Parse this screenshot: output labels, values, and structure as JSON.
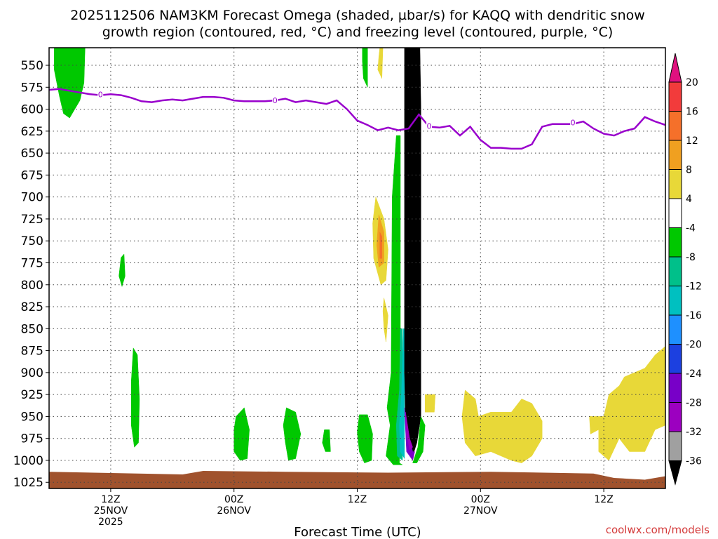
{
  "chart_data": {
    "type": "heatmap",
    "title_line1": "2025112506 NAM3KM Forecast Omega (shaded, µbar/s) for KAQQ with dendritic snow",
    "title_line2": "growth region (contoured, red, °C) and freezing level (contoured, purple, °C)",
    "xlabel": "Forecast Time (UTC)",
    "credit": "coolwx.com/models",
    "y_ticks": [
      "550",
      "575",
      "600",
      "625",
      "650",
      "675",
      "700",
      "725",
      "750",
      "775",
      "800",
      "825",
      "850",
      "875",
      "900",
      "925",
      "950",
      "975",
      "1000",
      "1025"
    ],
    "y_values": [
      550,
      575,
      600,
      625,
      650,
      675,
      700,
      725,
      750,
      775,
      800,
      825,
      850,
      875,
      900,
      925,
      950,
      975,
      1000,
      1025
    ],
    "ylim": [
      530,
      1032
    ],
    "x_range_hours": [
      -3,
      57
    ],
    "x_ticks": [
      {
        "hour": 3,
        "line1": "12Z",
        "line2": "25NOV",
        "line3": "2025"
      },
      {
        "hour": 15,
        "line1": "00Z",
        "line2": "26NOV",
        "line3": ""
      },
      {
        "hour": 27,
        "line1": "12Z",
        "line2": "",
        "line3": ""
      },
      {
        "hour": 39,
        "line1": "00Z",
        "line2": "27NOV",
        "line3": ""
      },
      {
        "hour": 51,
        "line1": "12Z",
        "line2": "",
        "line3": ""
      }
    ],
    "colorbar": {
      "labels": [
        "20",
        "16",
        "12",
        "8",
        "4",
        "-4",
        "-8",
        "-12",
        "-16",
        "-20",
        "-24",
        "-28",
        "-32",
        "-36"
      ],
      "colors": [
        "#e0117f",
        "#f23b3b",
        "#f5702a",
        "#f0a020",
        "#e8d838",
        "#ffffff",
        "#00c800",
        "#00c08a",
        "#00c0c0",
        "#1e90ff",
        "#1c40e0",
        "#7800c8",
        "#9c00c0",
        "#a0a0a0",
        "#000000"
      ]
    },
    "freezing_level": {
      "label": "0",
      "color": "#9900cc",
      "points": [
        [
          -3,
          578
        ],
        [
          -2,
          577
        ],
        [
          -1,
          579
        ],
        [
          0,
          581
        ],
        [
          1,
          583
        ],
        [
          2,
          584
        ],
        [
          3,
          583
        ],
        [
          4,
          584
        ],
        [
          5,
          587
        ],
        [
          6,
          591
        ],
        [
          7,
          592
        ],
        [
          8,
          590
        ],
        [
          9,
          589
        ],
        [
          10,
          590
        ],
        [
          11,
          588
        ],
        [
          12,
          586
        ],
        [
          13,
          586
        ],
        [
          14,
          587
        ],
        [
          15,
          590
        ],
        [
          16,
          591
        ],
        [
          17,
          591
        ],
        [
          18,
          591
        ],
        [
          19,
          590
        ],
        [
          20,
          588
        ],
        [
          21,
          592
        ],
        [
          22,
          590
        ],
        [
          23,
          592
        ],
        [
          24,
          594
        ],
        [
          25,
          590
        ],
        [
          26,
          600
        ],
        [
          27,
          613
        ],
        [
          28,
          618
        ],
        [
          29,
          624
        ],
        [
          30,
          621
        ],
        [
          31,
          624
        ],
        [
          32,
          622
        ],
        [
          33,
          606
        ],
        [
          34,
          620
        ],
        [
          35,
          621
        ],
        [
          36,
          619
        ],
        [
          37,
          630
        ],
        [
          38,
          620
        ],
        [
          39,
          635
        ],
        [
          40,
          644
        ],
        [
          41,
          644
        ],
        [
          42,
          645
        ],
        [
          43,
          645
        ],
        [
          44,
          640
        ],
        [
          45,
          620
        ],
        [
          46,
          617
        ],
        [
          47,
          617
        ],
        [
          48,
          617
        ],
        [
          49,
          614
        ],
        [
          50,
          622
        ],
        [
          51,
          628
        ],
        [
          52,
          630
        ],
        [
          53,
          625
        ],
        [
          54,
          622
        ],
        [
          55,
          609
        ],
        [
          56,
          614
        ],
        [
          57,
          618
        ]
      ],
      "label_points": [
        [
          2,
          583
        ],
        [
          19,
          590
        ],
        [
          34,
          619
        ],
        [
          48,
          615
        ]
      ]
    },
    "omega_regions": [
      {
        "color": "#00c800",
        "points": [
          [
            -2.5,
            530
          ],
          [
            0.5,
            530
          ],
          [
            0.4,
            570
          ],
          [
            0,
            590
          ],
          [
            -1,
            610
          ],
          [
            -1.6,
            605
          ],
          [
            -2,
            585
          ],
          [
            -2.5,
            555
          ]
        ]
      },
      {
        "color": "#00c800",
        "points": [
          [
            27.5,
            530
          ],
          [
            28,
            530
          ],
          [
            28,
            575
          ],
          [
            27.6,
            565
          ],
          [
            27.5,
            545
          ]
        ]
      },
      {
        "color": "#e8d838",
        "points": [
          [
            29.2,
            530
          ],
          [
            29.5,
            530
          ],
          [
            29.4,
            565
          ],
          [
            29,
            555
          ],
          [
            29.1,
            540
          ]
        ]
      },
      {
        "color": "#00c800",
        "points": [
          [
            4,
            769
          ],
          [
            4.3,
            765
          ],
          [
            4.4,
            790
          ],
          [
            4.1,
            802
          ],
          [
            3.8,
            790
          ]
        ]
      },
      {
        "color": "#00c800",
        "points": [
          [
            5.2,
            872
          ],
          [
            5.6,
            880
          ],
          [
            5.8,
            930
          ],
          [
            5.7,
            980
          ],
          [
            5.3,
            985
          ],
          [
            5,
            960
          ],
          [
            5,
            910
          ]
        ]
      },
      {
        "color": "#00c800",
        "points": [
          [
            15.2,
            950
          ],
          [
            16,
            940
          ],
          [
            16.5,
            965
          ],
          [
            16.3,
            998
          ],
          [
            15.6,
            1000
          ],
          [
            15,
            990
          ],
          [
            15,
            965
          ]
        ]
      },
      {
        "color": "#00c800",
        "points": [
          [
            20.1,
            940
          ],
          [
            21,
            945
          ],
          [
            21.5,
            970
          ],
          [
            21,
            998
          ],
          [
            20.3,
            1000
          ],
          [
            20,
            980
          ],
          [
            19.8,
            960
          ]
        ]
      },
      {
        "color": "#00c800",
        "points": [
          [
            23.8,
            965
          ],
          [
            24.3,
            965
          ],
          [
            24.4,
            990
          ],
          [
            23.9,
            990
          ],
          [
            23.6,
            980
          ]
        ]
      },
      {
        "color": "#00c800",
        "points": [
          [
            27.2,
            948
          ],
          [
            28,
            948
          ],
          [
            28.5,
            970
          ],
          [
            28.4,
            1000
          ],
          [
            27.7,
            1003
          ],
          [
            27.2,
            990
          ],
          [
            27,
            968
          ]
        ]
      },
      {
        "color": "#e8d838",
        "points": [
          [
            28.8,
            700
          ],
          [
            29.6,
            725
          ],
          [
            30,
            760
          ],
          [
            29.8,
            795
          ],
          [
            29.3,
            800
          ],
          [
            28.6,
            770
          ],
          [
            28.5,
            730
          ]
        ]
      },
      {
        "color": "#f0a020",
        "points": [
          [
            29.1,
            720
          ],
          [
            29.6,
            740
          ],
          [
            29.6,
            775
          ],
          [
            29.1,
            780
          ],
          [
            28.9,
            755
          ]
        ]
      },
      {
        "color": "#f5702a",
        "points": [
          [
            29.2,
            740
          ],
          [
            29.4,
            745
          ],
          [
            29.4,
            770
          ],
          [
            29.2,
            770
          ]
        ]
      },
      {
        "color": "#e8d838",
        "points": [
          [
            29.6,
            815
          ],
          [
            30,
            835
          ],
          [
            29.8,
            865
          ],
          [
            29.6,
            850
          ],
          [
            29.5,
            830
          ]
        ]
      },
      {
        "color": "#e8d838",
        "points": [
          [
            33.6,
            925
          ],
          [
            34.6,
            925
          ],
          [
            34.5,
            945
          ],
          [
            33.6,
            945
          ]
        ]
      },
      {
        "color": "#e8d838",
        "points": [
          [
            37.5,
            920
          ],
          [
            38.5,
            930
          ],
          [
            38.8,
            950
          ],
          [
            40,
            945
          ],
          [
            42,
            945
          ],
          [
            43,
            930
          ],
          [
            44,
            935
          ],
          [
            45,
            955
          ],
          [
            45,
            975
          ],
          [
            44,
            995
          ],
          [
            43,
            1003
          ],
          [
            42,
            1000
          ],
          [
            40,
            990
          ],
          [
            38.5,
            995
          ],
          [
            37.5,
            980
          ],
          [
            37.2,
            950
          ]
        ]
      },
      {
        "color": "#e8d838",
        "points": [
          [
            51.5,
            925
          ],
          [
            52.5,
            915
          ],
          [
            53,
            905
          ],
          [
            55,
            895
          ],
          [
            56,
            880
          ],
          [
            57,
            870
          ],
          [
            57,
            960
          ],
          [
            56,
            965
          ],
          [
            55,
            990
          ],
          [
            53.5,
            990
          ],
          [
            52.5,
            975
          ],
          [
            51.5,
            1000
          ],
          [
            50.5,
            990
          ],
          [
            50.5,
            965
          ],
          [
            49.7,
            970
          ],
          [
            49.6,
            950
          ],
          [
            51,
            950
          ]
        ]
      },
      {
        "color": "#00c800",
        "points": [
          [
            30.8,
            630
          ],
          [
            31.2,
            630
          ],
          [
            31.2,
            900
          ],
          [
            31.1,
            1003
          ],
          [
            31.4,
            1005
          ],
          [
            30.5,
            1005
          ],
          [
            29.8,
            995
          ],
          [
            30.2,
            960
          ],
          [
            29.9,
            940
          ],
          [
            30.3,
            900
          ],
          [
            30.4,
            700
          ]
        ]
      },
      {
        "color": "#00c08a",
        "points": [
          [
            31.2,
            850
          ],
          [
            31.4,
            850
          ],
          [
            31.4,
            1000
          ],
          [
            30.9,
            995
          ],
          [
            30.8,
            960
          ],
          [
            31.1,
            920
          ]
        ]
      },
      {
        "color": "#00c0c0",
        "points": [
          [
            31.5,
            850
          ],
          [
            31.6,
            850
          ],
          [
            31.6,
            998
          ],
          [
            31.2,
            990
          ],
          [
            31.1,
            960
          ],
          [
            31.3,
            925
          ]
        ]
      },
      {
        "color": "#000000",
        "points": [
          [
            31.6,
            530
          ],
          [
            33.1,
            530
          ],
          [
            33.2,
            600
          ],
          [
            33.2,
            950
          ],
          [
            32.8,
            980
          ],
          [
            32.4,
            995
          ],
          [
            32,
            985
          ],
          [
            31.7,
            960
          ],
          [
            31.6,
            900
          ]
        ]
      },
      {
        "color": "#7800c8",
        "points": [
          [
            31.6,
            940
          ],
          [
            32,
            970
          ],
          [
            32.4,
            990
          ],
          [
            32.6,
            990
          ],
          [
            32.4,
            1000
          ],
          [
            31.8,
            990
          ]
        ]
      },
      {
        "color": "#9c00c0",
        "points": [
          [
            31.7,
            945
          ],
          [
            32.1,
            975
          ],
          [
            32.4,
            985
          ],
          [
            32.1,
            988
          ],
          [
            31.8,
            970
          ]
        ]
      },
      {
        "color": "#00c800",
        "points": [
          [
            33.2,
            950
          ],
          [
            33.6,
            960
          ],
          [
            33.4,
            990
          ],
          [
            32.8,
            1003
          ],
          [
            32.4,
            1003
          ],
          [
            32.9,
            985
          ]
        ]
      }
    ],
    "ground": {
      "color": "#a0522d",
      "levels": [
        [
          -3,
          1013
        ],
        [
          10,
          1016
        ],
        [
          12,
          1012
        ],
        [
          20,
          1013
        ],
        [
          30,
          1014
        ],
        [
          40,
          1013
        ],
        [
          50,
          1015
        ],
        [
          52,
          1020
        ],
        [
          55,
          1022
        ],
        [
          57,
          1018
        ]
      ]
    }
  }
}
